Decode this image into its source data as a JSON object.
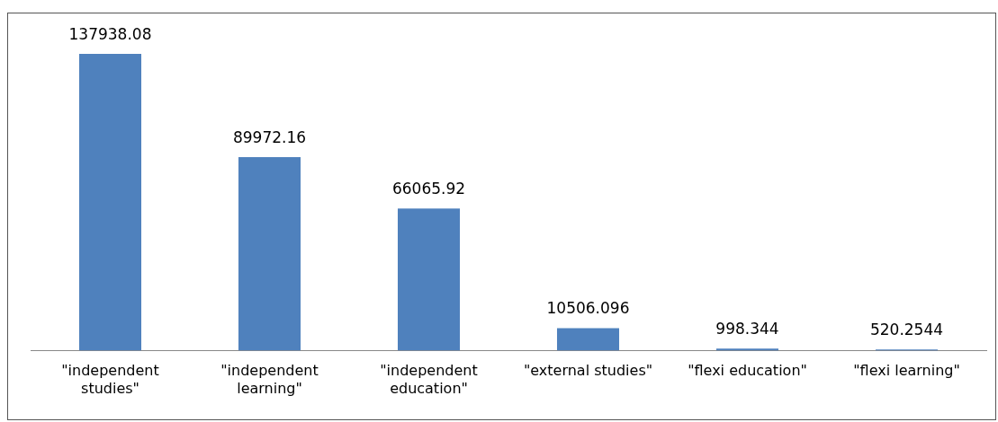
{
  "chart_data": {
    "type": "bar",
    "categories": [
      "\"independent studies\"",
      "\"independent learning\"",
      "\"independent education\"",
      "\"external studies\"",
      "\"flexi education\"",
      "\"flexi learning\""
    ],
    "values": [
      137938.08,
      89972.16,
      66065.92,
      10506.096,
      998.344,
      520.2544
    ],
    "color": "#4f81bd",
    "data_labels": true,
    "grid": false,
    "legend": false,
    "tick_labels": "x"
  }
}
